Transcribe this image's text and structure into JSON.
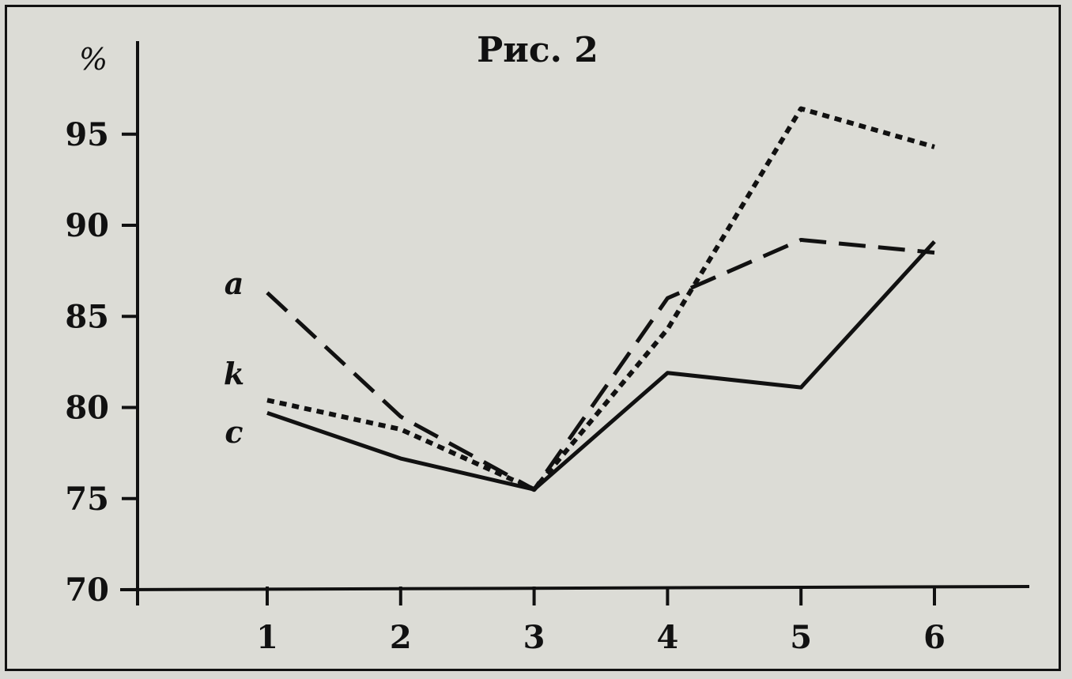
{
  "chart_data": {
    "type": "line",
    "title": "Рис. 2",
    "ylabel": "%",
    "xlabel": "",
    "x": [
      1,
      2,
      3,
      4,
      5,
      6
    ],
    "ylim": [
      70,
      100
    ],
    "yticks": [
      70,
      75,
      80,
      85,
      90,
      95
    ],
    "grid": false,
    "series": [
      {
        "name": "a",
        "style": "dashed",
        "values": [
          86.3,
          79.5,
          75.5,
          86.0,
          89.2,
          88.5
        ]
      },
      {
        "name": "k",
        "style": "dotted",
        "values": [
          80.4,
          78.8,
          75.5,
          84.3,
          96.4,
          94.3
        ]
      },
      {
        "name": "c",
        "style": "solid",
        "values": [
          79.7,
          77.2,
          75.5,
          81.9,
          81.1,
          89.1
        ]
      }
    ]
  }
}
